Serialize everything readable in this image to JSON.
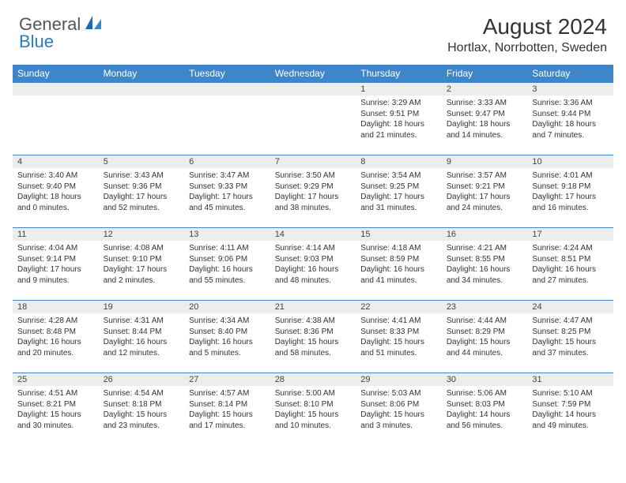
{
  "brand": {
    "text_general": "General",
    "text_blue": "Blue",
    "color_general": "#555555",
    "color_blue": "#2b7bbf"
  },
  "header": {
    "month_title": "August 2024",
    "location": "Hortlax, Norrbotten, Sweden",
    "title_fontsize": 28,
    "location_fontsize": 16
  },
  "palette": {
    "header_bg": "#3d87c9",
    "header_fg": "#ffffff",
    "daynum_bg": "#eceded",
    "cell_border": "#3d87c9",
    "text_color": "#333333",
    "background": "#ffffff"
  },
  "calendar": {
    "day_headers": [
      "Sunday",
      "Monday",
      "Tuesday",
      "Wednesday",
      "Thursday",
      "Friday",
      "Saturday"
    ],
    "month": 8,
    "year": 2024,
    "first_weekday_index": 4,
    "num_days": 31,
    "weeks": [
      [
        null,
        null,
        null,
        null,
        {
          "n": "1",
          "sunrise": "Sunrise: 3:29 AM",
          "sunset": "Sunset: 9:51 PM",
          "daylight": "Daylight: 18 hours and 21 minutes."
        },
        {
          "n": "2",
          "sunrise": "Sunrise: 3:33 AM",
          "sunset": "Sunset: 9:47 PM",
          "daylight": "Daylight: 18 hours and 14 minutes."
        },
        {
          "n": "3",
          "sunrise": "Sunrise: 3:36 AM",
          "sunset": "Sunset: 9:44 PM",
          "daylight": "Daylight: 18 hours and 7 minutes."
        }
      ],
      [
        {
          "n": "4",
          "sunrise": "Sunrise: 3:40 AM",
          "sunset": "Sunset: 9:40 PM",
          "daylight": "Daylight: 18 hours and 0 minutes."
        },
        {
          "n": "5",
          "sunrise": "Sunrise: 3:43 AM",
          "sunset": "Sunset: 9:36 PM",
          "daylight": "Daylight: 17 hours and 52 minutes."
        },
        {
          "n": "6",
          "sunrise": "Sunrise: 3:47 AM",
          "sunset": "Sunset: 9:33 PM",
          "daylight": "Daylight: 17 hours and 45 minutes."
        },
        {
          "n": "7",
          "sunrise": "Sunrise: 3:50 AM",
          "sunset": "Sunset: 9:29 PM",
          "daylight": "Daylight: 17 hours and 38 minutes."
        },
        {
          "n": "8",
          "sunrise": "Sunrise: 3:54 AM",
          "sunset": "Sunset: 9:25 PM",
          "daylight": "Daylight: 17 hours and 31 minutes."
        },
        {
          "n": "9",
          "sunrise": "Sunrise: 3:57 AM",
          "sunset": "Sunset: 9:21 PM",
          "daylight": "Daylight: 17 hours and 24 minutes."
        },
        {
          "n": "10",
          "sunrise": "Sunrise: 4:01 AM",
          "sunset": "Sunset: 9:18 PM",
          "daylight": "Daylight: 17 hours and 16 minutes."
        }
      ],
      [
        {
          "n": "11",
          "sunrise": "Sunrise: 4:04 AM",
          "sunset": "Sunset: 9:14 PM",
          "daylight": "Daylight: 17 hours and 9 minutes."
        },
        {
          "n": "12",
          "sunrise": "Sunrise: 4:08 AM",
          "sunset": "Sunset: 9:10 PM",
          "daylight": "Daylight: 17 hours and 2 minutes."
        },
        {
          "n": "13",
          "sunrise": "Sunrise: 4:11 AM",
          "sunset": "Sunset: 9:06 PM",
          "daylight": "Daylight: 16 hours and 55 minutes."
        },
        {
          "n": "14",
          "sunrise": "Sunrise: 4:14 AM",
          "sunset": "Sunset: 9:03 PM",
          "daylight": "Daylight: 16 hours and 48 minutes."
        },
        {
          "n": "15",
          "sunrise": "Sunrise: 4:18 AM",
          "sunset": "Sunset: 8:59 PM",
          "daylight": "Daylight: 16 hours and 41 minutes."
        },
        {
          "n": "16",
          "sunrise": "Sunrise: 4:21 AM",
          "sunset": "Sunset: 8:55 PM",
          "daylight": "Daylight: 16 hours and 34 minutes."
        },
        {
          "n": "17",
          "sunrise": "Sunrise: 4:24 AM",
          "sunset": "Sunset: 8:51 PM",
          "daylight": "Daylight: 16 hours and 27 minutes."
        }
      ],
      [
        {
          "n": "18",
          "sunrise": "Sunrise: 4:28 AM",
          "sunset": "Sunset: 8:48 PM",
          "daylight": "Daylight: 16 hours and 20 minutes."
        },
        {
          "n": "19",
          "sunrise": "Sunrise: 4:31 AM",
          "sunset": "Sunset: 8:44 PM",
          "daylight": "Daylight: 16 hours and 12 minutes."
        },
        {
          "n": "20",
          "sunrise": "Sunrise: 4:34 AM",
          "sunset": "Sunset: 8:40 PM",
          "daylight": "Daylight: 16 hours and 5 minutes."
        },
        {
          "n": "21",
          "sunrise": "Sunrise: 4:38 AM",
          "sunset": "Sunset: 8:36 PM",
          "daylight": "Daylight: 15 hours and 58 minutes."
        },
        {
          "n": "22",
          "sunrise": "Sunrise: 4:41 AM",
          "sunset": "Sunset: 8:33 PM",
          "daylight": "Daylight: 15 hours and 51 minutes."
        },
        {
          "n": "23",
          "sunrise": "Sunrise: 4:44 AM",
          "sunset": "Sunset: 8:29 PM",
          "daylight": "Daylight: 15 hours and 44 minutes."
        },
        {
          "n": "24",
          "sunrise": "Sunrise: 4:47 AM",
          "sunset": "Sunset: 8:25 PM",
          "daylight": "Daylight: 15 hours and 37 minutes."
        }
      ],
      [
        {
          "n": "25",
          "sunrise": "Sunrise: 4:51 AM",
          "sunset": "Sunset: 8:21 PM",
          "daylight": "Daylight: 15 hours and 30 minutes."
        },
        {
          "n": "26",
          "sunrise": "Sunrise: 4:54 AM",
          "sunset": "Sunset: 8:18 PM",
          "daylight": "Daylight: 15 hours and 23 minutes."
        },
        {
          "n": "27",
          "sunrise": "Sunrise: 4:57 AM",
          "sunset": "Sunset: 8:14 PM",
          "daylight": "Daylight: 15 hours and 17 minutes."
        },
        {
          "n": "28",
          "sunrise": "Sunrise: 5:00 AM",
          "sunset": "Sunset: 8:10 PM",
          "daylight": "Daylight: 15 hours and 10 minutes."
        },
        {
          "n": "29",
          "sunrise": "Sunrise: 5:03 AM",
          "sunset": "Sunset: 8:06 PM",
          "daylight": "Daylight: 15 hours and 3 minutes."
        },
        {
          "n": "30",
          "sunrise": "Sunrise: 5:06 AM",
          "sunset": "Sunset: 8:03 PM",
          "daylight": "Daylight: 14 hours and 56 minutes."
        },
        {
          "n": "31",
          "sunrise": "Sunrise: 5:10 AM",
          "sunset": "Sunset: 7:59 PM",
          "daylight": "Daylight: 14 hours and 49 minutes."
        }
      ]
    ]
  },
  "typography": {
    "header_cell_fontsize": 12,
    "daynum_fontsize": 11,
    "content_fontsize": 10
  }
}
